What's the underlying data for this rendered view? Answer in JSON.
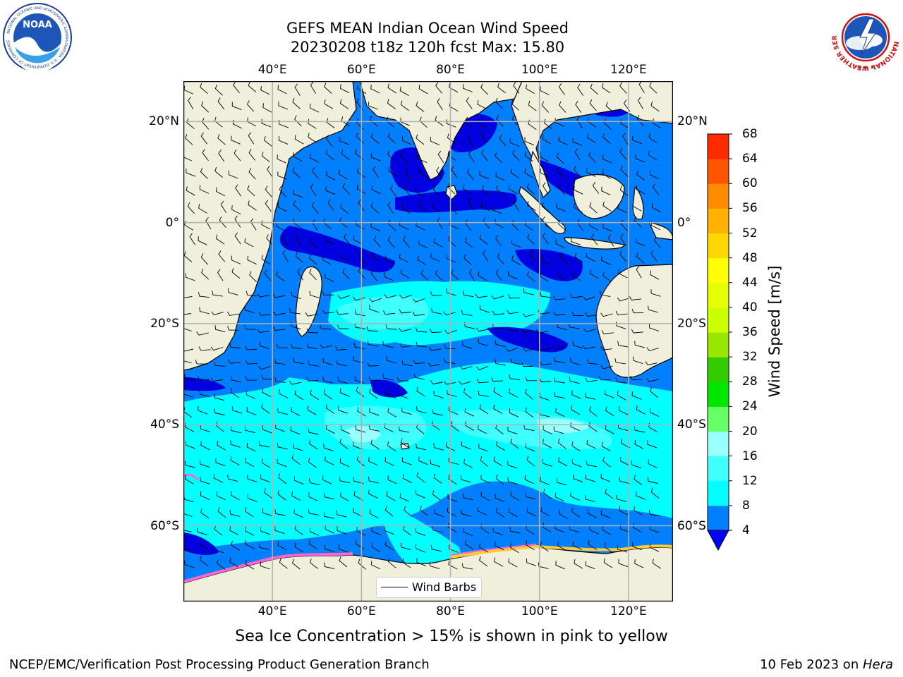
{
  "header": {
    "title_line1": "GEFS MEAN Indian Ocean Wind Speed",
    "title_line2": "20230208 t18z 120h fcst   Max: 15.80"
  },
  "logos": {
    "noaa_text": "NOAA",
    "noaa_ring_text": "NATIONAL OCEANIC AND ATMOSPHERIC ADMINISTRATION · U.S. DEPARTMENT OF COMMERCE",
    "nws_ring_text": "NATIONAL WEATHER SERVICE"
  },
  "map": {
    "extent": {
      "lon_min": 20,
      "lon_max": 130,
      "lat_min": -75,
      "lat_max": 28
    },
    "lon_ticks": [
      {
        "lon": 40,
        "label": "40°E"
      },
      {
        "lon": 60,
        "label": "60°E"
      },
      {
        "lon": 80,
        "label": "80°E"
      },
      {
        "lon": 100,
        "label": "100°E"
      },
      {
        "lon": 120,
        "label": "120°E"
      }
    ],
    "lat_ticks": [
      {
        "lat": 20,
        "label": "20°N"
      },
      {
        "lat": 0,
        "label": "0°"
      },
      {
        "lat": -20,
        "label": "20°S"
      },
      {
        "lat": -40,
        "label": "40°S"
      },
      {
        "lat": -60,
        "label": "60°S"
      }
    ],
    "legend_label": "Wind Barbs",
    "colors": {
      "land": "#efefdc",
      "ocean": "#0080ff",
      "grid": "#b0b0b0"
    }
  },
  "colorbar": {
    "label": "Wind Speed [m/s]",
    "ticks": [
      "4",
      "8",
      "12",
      "16",
      "20",
      "24",
      "28",
      "32",
      "36",
      "40",
      "44",
      "48",
      "52",
      "56",
      "60",
      "64",
      "68"
    ],
    "colors": [
      "#0080ff",
      "#00ffff",
      "#40ffff",
      "#99ffff",
      "#66ff66",
      "#00e600",
      "#33cc00",
      "#99e600",
      "#ccff00",
      "#e6ff00",
      "#ffff00",
      "#ffd700",
      "#ffb000",
      "#ff8c00",
      "#ff5500",
      "#ff2a00"
    ],
    "extend_color": "#0000ff"
  },
  "footer": {
    "sea_ice_note": "Sea Ice Concentration > 15% is shown in pink to yellow",
    "left": "NCEP/EMC/Verification Post Processing Product Generation Branch",
    "right_prefix": "10 Feb 2023 on ",
    "right_host": "Hera"
  }
}
